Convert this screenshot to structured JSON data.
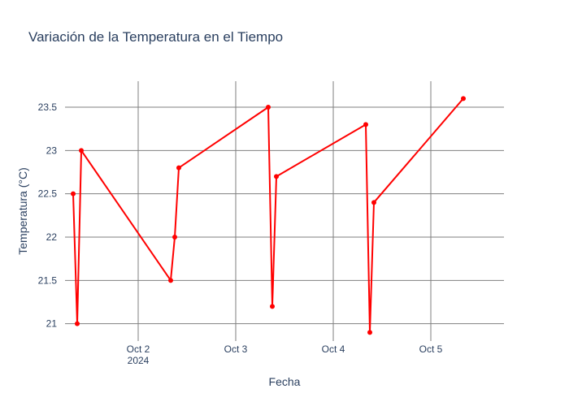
{
  "chart_data": {
    "type": "line",
    "title": "Variación de la Temperatura en el Tiempo",
    "xlabel": "Fecha",
    "ylabel": "Temperatura (°C)",
    "x_ticks": [
      {
        "date": "2024-10-02",
        "label": "Oct 2",
        "sublabel": "2024"
      },
      {
        "date": "2024-10-03",
        "label": "Oct 3"
      },
      {
        "date": "2024-10-04",
        "label": "Oct 4"
      },
      {
        "date": "2024-10-05",
        "label": "Oct 5"
      }
    ],
    "y_ticks": [
      "21",
      "21.5",
      "22",
      "22.5",
      "23",
      "23.5"
    ],
    "ylim": [
      20.8,
      23.8
    ],
    "xlim": [
      "2024-10-01 06:00",
      "2024-10-05 18:00"
    ],
    "grid": true,
    "color": "#ff0000",
    "series": [
      {
        "x": [
          "2024-10-01 08:00",
          "2024-10-01 09:00",
          "2024-10-01 10:00",
          "2024-10-02 08:00",
          "2024-10-02 09:00",
          "2024-10-02 10:00",
          "2024-10-03 08:00",
          "2024-10-03 09:00",
          "2024-10-03 10:00",
          "2024-10-04 08:00",
          "2024-10-04 09:00",
          "2024-10-04 10:00",
          "2024-10-05 08:00"
        ],
        "y": [
          22.5,
          21.0,
          23.0,
          21.5,
          22.0,
          22.8,
          23.5,
          21.2,
          22.7,
          23.3,
          20.9,
          22.4,
          23.6
        ]
      }
    ]
  }
}
